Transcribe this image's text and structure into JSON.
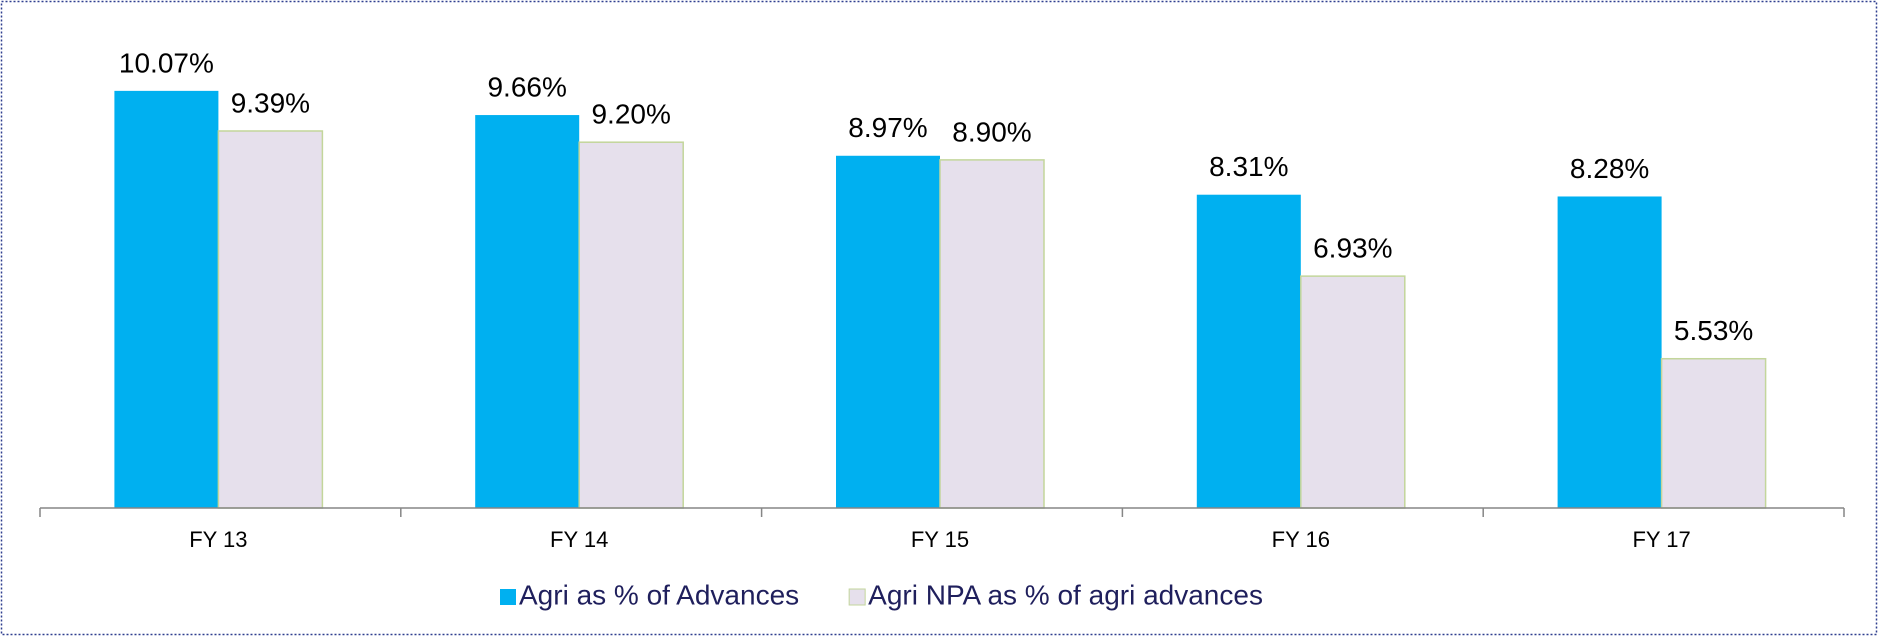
{
  "chart_data": {
    "type": "bar",
    "categories": [
      "FY 13",
      "FY 14",
      "FY 15",
      "FY 16",
      "FY 17"
    ],
    "series": [
      {
        "name": "Agri as % of Advances",
        "color": "#00b0f0",
        "values": [
          10.07,
          9.66,
          8.97,
          8.31,
          8.28
        ],
        "value_labels": [
          "10.07%",
          "9.66%",
          "8.97%",
          "8.31%",
          "8.28%"
        ]
      },
      {
        "name": "Agri NPA as % of agri advances",
        "color": "#e6e0ec",
        "values": [
          9.39,
          9.2,
          8.9,
          6.93,
          5.53
        ],
        "value_labels": [
          "9.39%",
          "9.20%",
          "8.90%",
          "6.93%",
          "5.53%"
        ]
      }
    ],
    "ylim": [
      3,
      11
    ]
  }
}
